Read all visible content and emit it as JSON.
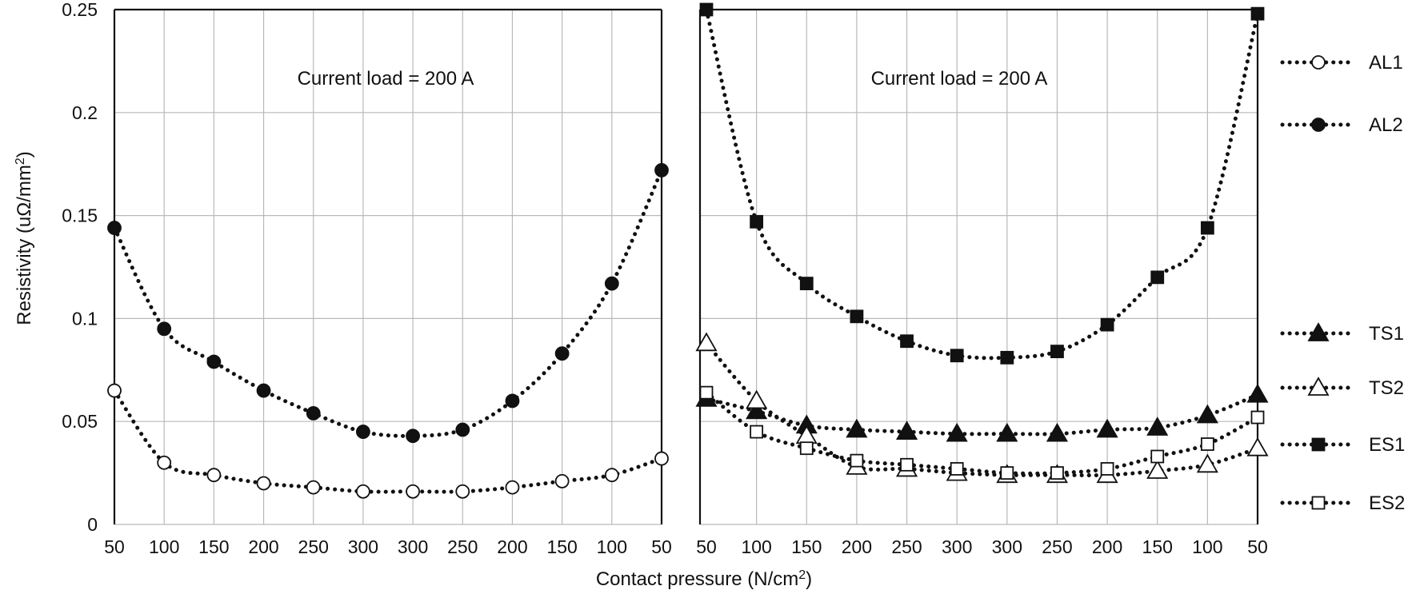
{
  "chart_data": {
    "type": "line",
    "shared": {
      "ylabel": "Resistivity (uΩ/mm",
      "ylabel_sup": "2",
      "ylabel_close": ")",
      "xlabel": "Contact pressure (N/cm",
      "xlabel_sup": "2",
      "xlabel_close": ")",
      "ylim": [
        0,
        0.25
      ],
      "yticks": [
        "0",
        "0.05",
        "0.1",
        "0.15",
        "0.2",
        "0.25"
      ],
      "categories": [
        "50",
        "100",
        "150",
        "200",
        "250",
        "300",
        "300",
        "250",
        "200",
        "150",
        "100",
        "50"
      ],
      "grid": true,
      "legend_placement": "right"
    },
    "panels": [
      {
        "annotation": "Current load = 200 A",
        "series": [
          {
            "name": "AL1",
            "marker": "circle-open",
            "values": [
              0.065,
              0.03,
              0.024,
              0.02,
              0.018,
              0.016,
              0.016,
              0.016,
              0.018,
              0.021,
              0.024,
              0.032
            ]
          },
          {
            "name": "AL2",
            "marker": "circle-filled",
            "values": [
              0.144,
              0.095,
              0.079,
              0.065,
              0.054,
              0.045,
              0.043,
              0.046,
              0.06,
              0.083,
              0.117,
              0.172
            ]
          }
        ]
      },
      {
        "annotation": "Current load = 200 A",
        "series": [
          {
            "name": "TS1",
            "marker": "triangle-filled",
            "values": [
              0.061,
              0.055,
              0.048,
              0.046,
              0.045,
              0.044,
              0.044,
              0.044,
              0.046,
              0.047,
              0.053,
              0.063
            ]
          },
          {
            "name": "TS2",
            "marker": "triangle-open",
            "values": [
              0.088,
              0.06,
              0.043,
              0.028,
              0.027,
              0.025,
              0.024,
              0.024,
              0.024,
              0.026,
              0.029,
              0.037
            ]
          },
          {
            "name": "ES1",
            "marker": "square-filled",
            "values": [
              0.25,
              0.147,
              0.117,
              0.101,
              0.089,
              0.082,
              0.081,
              0.084,
              0.097,
              0.12,
              0.144,
              0.248
            ]
          },
          {
            "name": "ES2",
            "marker": "square-open",
            "values": [
              0.064,
              0.045,
              0.037,
              0.031,
              0.029,
              0.027,
              0.025,
              0.025,
              0.027,
              0.033,
              0.039,
              0.052
            ]
          }
        ]
      }
    ]
  }
}
